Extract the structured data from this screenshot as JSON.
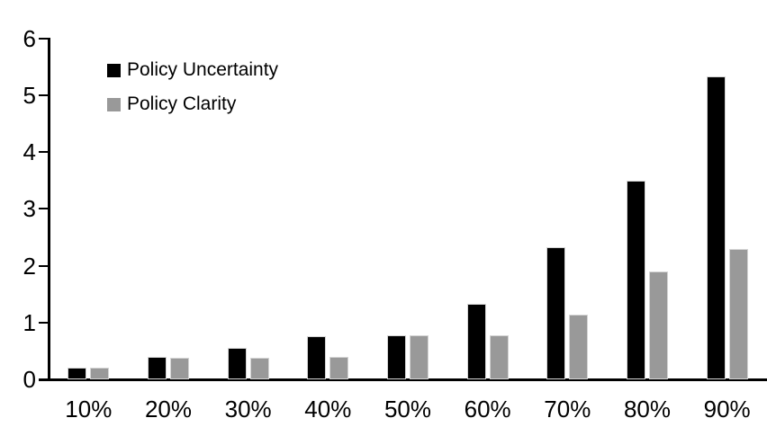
{
  "chart_data": {
    "type": "bar",
    "title": "",
    "xlabel": "",
    "ylabel": "",
    "categories": [
      "10%",
      "20%",
      "30%",
      "40%",
      "50%",
      "60%",
      "70%",
      "80%",
      "90%"
    ],
    "series": [
      {
        "name": "Policy Uncertainty",
        "color": "#000000",
        "values": [
          0.2,
          0.39,
          0.56,
          0.76,
          0.78,
          1.33,
          2.32,
          3.5,
          5.33
        ]
      },
      {
        "name": "Policy Clarity",
        "color": "#999999",
        "values": [
          0.2,
          0.38,
          0.38,
          0.39,
          0.77,
          0.77,
          1.14,
          1.89,
          2.3
        ]
      }
    ],
    "y_ticks": [
      "0",
      "1",
      "2",
      "3",
      "4",
      "5",
      "6"
    ],
    "ylim": [
      0,
      6
    ],
    "grid": false,
    "legend_position": "top-left-inside",
    "axis_color": "#000000",
    "background_color": "#ffffff"
  }
}
